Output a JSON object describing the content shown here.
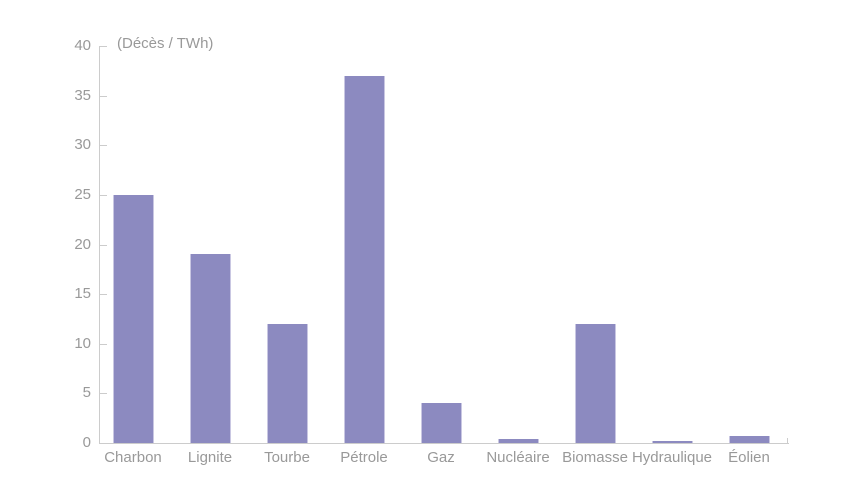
{
  "page": {
    "background": "#ffffff"
  },
  "chart_data": {
    "type": "bar",
    "title": "(Décès / TWh)",
    "categories": [
      "Charbon",
      "Lignite",
      "Tourbe",
      "Pétrole",
      "Gaz",
      "Nucléaire",
      "Biomasse",
      "Hydraulique",
      "Éolien"
    ],
    "values": [
      25,
      19,
      12,
      37,
      4,
      0.4,
      12,
      0.2,
      0.7
    ],
    "xlabel": "",
    "ylabel": "(Décès / TWh)",
    "ylim": [
      0,
      40
    ],
    "ytick_step": 5,
    "yticks": [
      0,
      5,
      10,
      15,
      20,
      25,
      30,
      35,
      40
    ],
    "grid": false,
    "legend": "none",
    "bar_color": "#8c8ac0",
    "bar_edge_color": "#c9c7e2",
    "axis_color": "#cccccc",
    "text_color": "#999999"
  }
}
